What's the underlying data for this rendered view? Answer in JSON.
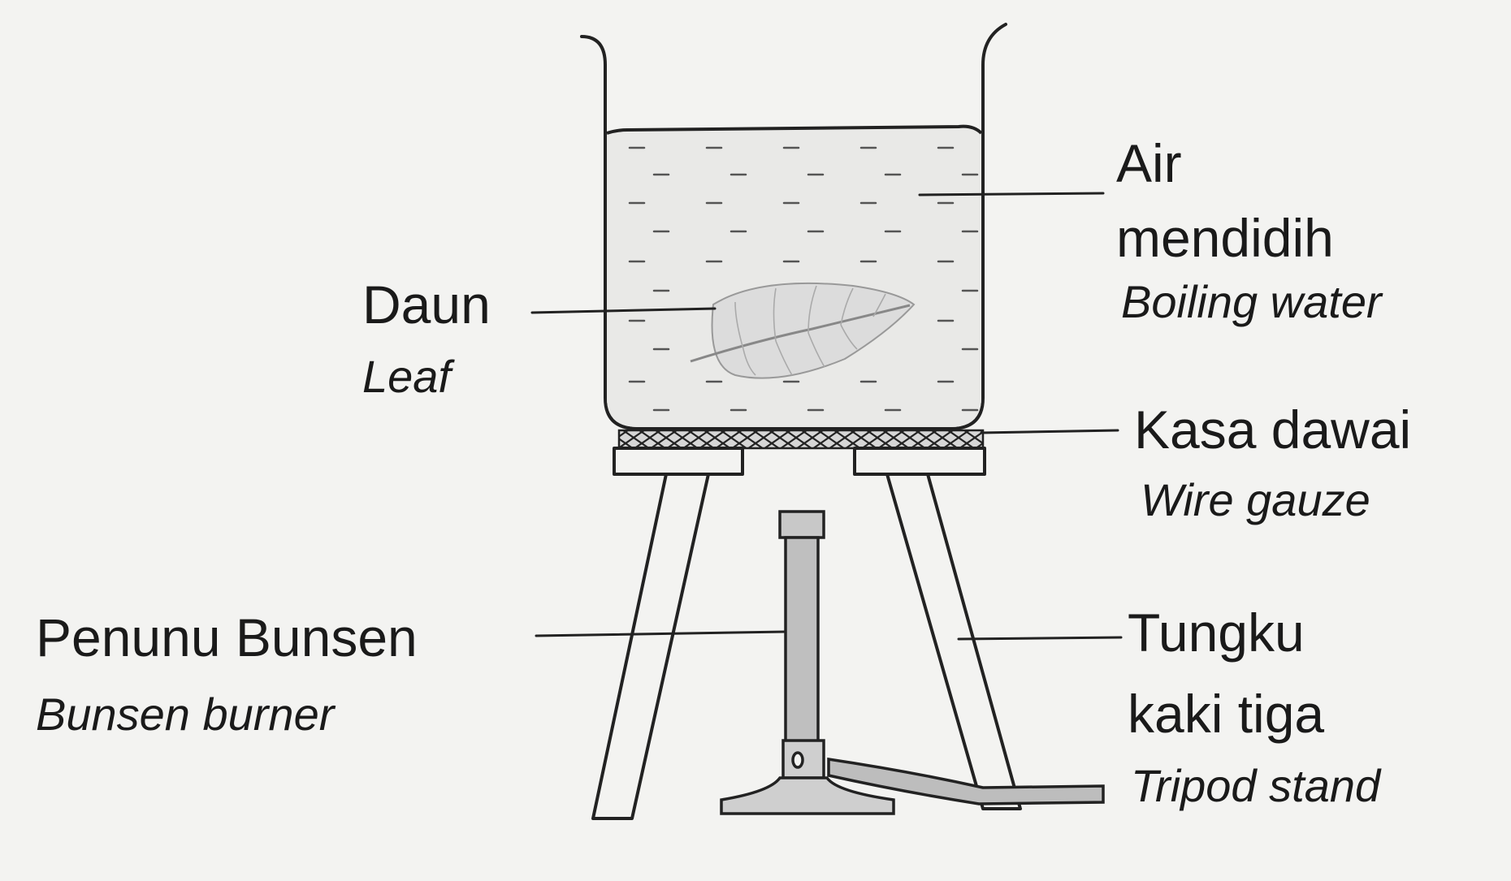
{
  "labels": {
    "boiling_water": {
      "malay_line1": "Air",
      "malay_line2": "mendidih",
      "english": "Boiling water"
    },
    "leaf": {
      "malay": "Daun",
      "english": "Leaf"
    },
    "wire_gauze": {
      "malay": "Kasa dawai",
      "english": "Wire gauze"
    },
    "bunsen_burner": {
      "malay": "Penunu Bunsen",
      "english": "Bunsen burner"
    },
    "tripod_stand": {
      "malay_line1": "Tungku",
      "malay_line2": "kaki tiga",
      "english": "Tripod stand"
    }
  }
}
